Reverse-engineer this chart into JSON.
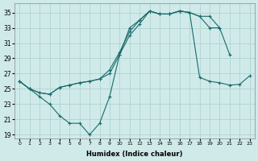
{
  "xlabel": "Humidex (Indice chaleur)",
  "background_color": "#d0eaea",
  "grid_color": "#aacece",
  "line_color": "#1a6b6b",
  "xlim": [
    -0.5,
    23.5
  ],
  "ylim": [
    18.5,
    36.2
  ],
  "xticks": [
    0,
    1,
    2,
    3,
    4,
    5,
    6,
    7,
    8,
    9,
    10,
    11,
    12,
    13,
    14,
    15,
    16,
    17,
    18,
    19,
    20,
    21,
    22,
    23
  ],
  "yticks": [
    19,
    21,
    23,
    25,
    27,
    29,
    31,
    33,
    35
  ],
  "line1_x": [
    0,
    1,
    2,
    3,
    4,
    5,
    6,
    7,
    8,
    9,
    10,
    11,
    12,
    13,
    14,
    15,
    16,
    17,
    18,
    19,
    20,
    21,
    22,
    23
  ],
  "line1_y": [
    26.0,
    25.0,
    24.0,
    23.0,
    21.5,
    20.5,
    20.5,
    19.0,
    20.5,
    24.0,
    29.5,
    33.0,
    34.0,
    35.2,
    34.8,
    34.8,
    35.2,
    35.0,
    26.5,
    26.0,
    25.8,
    25.5,
    25.6,
    26.7
  ],
  "line2_x": [
    0,
    1,
    2,
    3,
    4,
    5,
    6,
    7,
    8,
    9,
    10,
    11,
    12,
    13,
    14,
    15,
    16,
    17,
    18,
    19,
    20,
    21
  ],
  "line2_y": [
    26.0,
    25.0,
    24.5,
    24.3,
    25.2,
    25.5,
    25.8,
    26.0,
    26.3,
    27.0,
    29.5,
    32.0,
    33.5,
    35.2,
    34.8,
    34.8,
    35.2,
    35.0,
    34.5,
    33.0,
    33.0,
    29.5
  ],
  "line3_x": [
    0,
    1,
    2,
    3,
    4,
    5,
    6,
    7,
    8,
    9,
    10,
    11,
    12,
    13,
    14,
    15,
    16,
    17,
    18,
    19,
    20
  ],
  "line3_y": [
    26.0,
    25.0,
    24.5,
    24.3,
    25.2,
    25.5,
    25.8,
    26.0,
    26.3,
    27.5,
    29.8,
    32.5,
    34.0,
    35.2,
    34.8,
    34.8,
    35.2,
    35.0,
    34.5,
    34.5,
    33.0
  ]
}
